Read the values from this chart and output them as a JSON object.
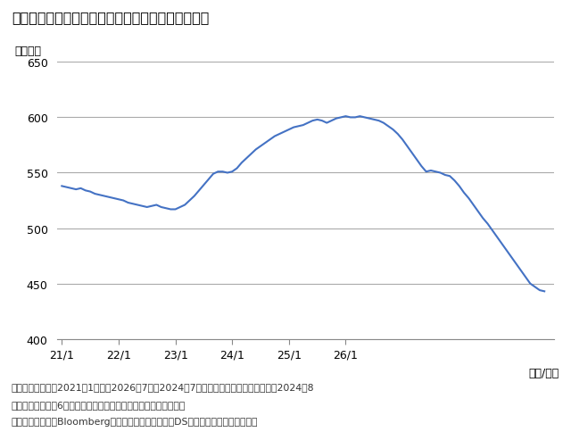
{
  "title": "『図表２：国債買い入れ停止時の国債の保有残高』",
  "title_display": "【図表２：国債買い入れ停止時の国債の保有残高】",
  "ylabel": "（兆円）",
  "xlabel": "（年/月）",
  "ylim": [
    400,
    650
  ],
  "yticks": [
    400,
    450,
    500,
    550,
    600,
    650
  ],
  "xtick_labels": [
    "21/1",
    "22/1",
    "23/1",
    "24/1",
    "25/1",
    "26/1"
  ],
  "line_color": "#4472c4",
  "line_width": 1.5,
  "bg_color": "#ffffff",
  "grid_color": "#aaaaaa",
  "note_line1": "（注）　データは2021年1月から2026年7月。2024年7月以降は仮定に基づく試算で、2024年8",
  "note_line2": "　　　　月から月6兆円の買い入れを完全に停止した場合を想定。",
  "note_line3": "（出所）　日銀、Bloombergのデータを基に三井住友DSアセットマネジメント作成",
  "values": [
    538,
    537,
    536,
    535,
    536,
    534,
    533,
    531,
    530,
    529,
    528,
    527,
    526,
    525,
    523,
    522,
    521,
    520,
    519,
    520,
    521,
    519,
    518,
    517,
    517,
    519,
    521,
    525,
    529,
    534,
    539,
    544,
    549,
    551,
    551,
    550,
    551,
    554,
    559,
    563,
    567,
    571,
    574,
    577,
    580,
    583,
    585,
    587,
    589,
    591,
    592,
    593,
    595,
    597,
    598,
    597,
    595,
    597,
    599,
    600,
    601,
    600,
    600,
    601,
    600,
    599,
    598,
    597,
    595,
    592,
    589,
    585,
    580,
    574,
    568,
    562,
    556,
    551,
    552,
    551,
    550,
    548,
    547,
    543,
    538,
    532,
    527,
    521,
    515,
    509,
    504,
    498,
    492,
    486,
    480,
    474,
    468,
    462,
    456,
    450,
    447,
    444,
    443
  ]
}
